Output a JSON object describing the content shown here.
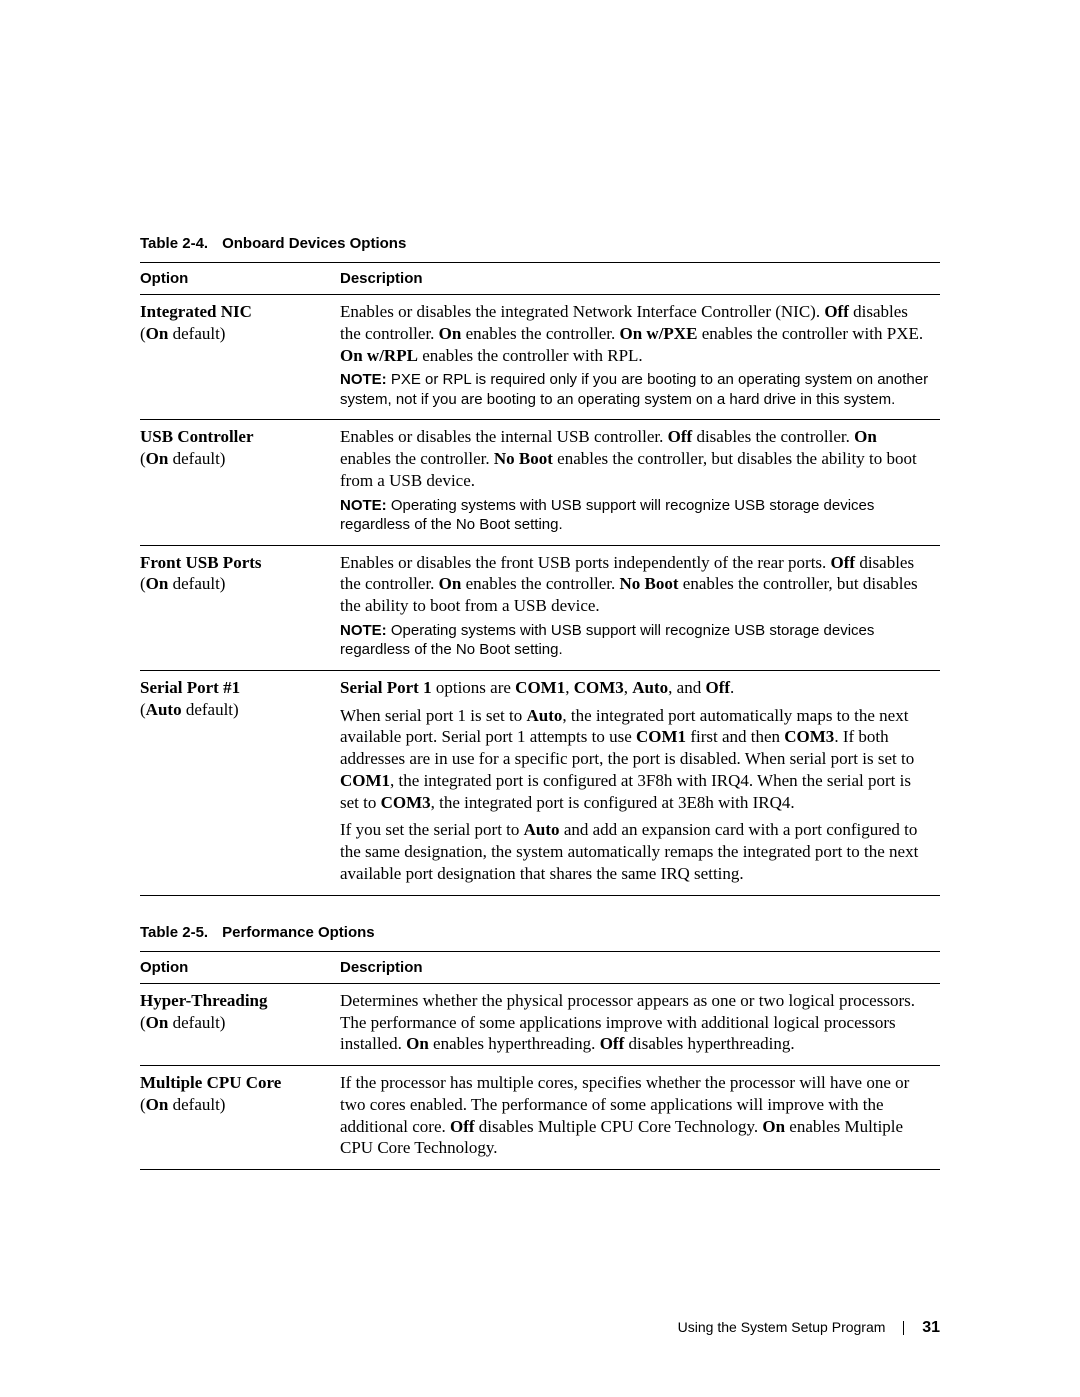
{
  "table1": {
    "caption_num": "Table 2-4.",
    "caption_title": "Onboard Devices Options",
    "header_option": "Option",
    "header_description": "Description",
    "rows": {
      "r1": {
        "name": "Integrated NIC",
        "default_pre": "(",
        "default_bold": "On",
        "default_post": " default)",
        "desc_html": "Enables or disables the integrated Network Interface Controller (NIC). <b>Off</b> disables the controller. <b>On</b> enables the controller. <b>On w/PXE</b> enables the controller with PXE. <b>On w/RPL</b> enables the controller with RPL.",
        "note_label": "NOTE:",
        "note_text": " PXE or RPL is required only if you are booting to an operating system on another system, not if you are booting to an operating system on a hard drive in this system."
      },
      "r2": {
        "name": "USB Controller",
        "default_pre": "(",
        "default_bold": "On",
        "default_post": " default)",
        "desc_html": "Enables or disables the internal USB controller. <b>Off</b> disables the controller. <b>On</b> enables the controller. <b>No Boot</b> enables the controller, but disables the ability to boot from a USB device.",
        "note_label": "NOTE:",
        "note_text": " Operating systems with USB support will recognize USB storage devices regardless of the No Boot setting."
      },
      "r3": {
        "name": "Front USB Ports",
        "default_pre": "(",
        "default_bold": "On",
        "default_post": " default)",
        "desc_html": "Enables or disables the front USB ports independently of the rear ports. <b>Off</b> disables the controller. <b>On</b> enables the controller. <b>No Boot</b> enables the controller, but disables the ability to boot from a USB device.",
        "note_label": "NOTE:",
        "note_text": " Operating systems with USB support will recognize USB storage devices regardless of the No Boot setting."
      },
      "r4": {
        "name": "Serial Port #1",
        "default_pre": "(",
        "default_bold": "Auto",
        "default_post": " default)",
        "desc1_html": "<b>Serial Port 1</b> options are <b>COM1</b>, <b>COM3</b>, <b>Auto</b>, and <b>Off</b>.",
        "desc2_html": "When serial port 1 is set to <b>Auto</b>, the integrated port automatically maps to the next available port. Serial port 1 attempts to use <b>COM1</b> first and then <b>COM3</b>. If both addresses are in use for a specific port, the port is disabled. When serial port is set to <b>COM1</b>, the integrated port is configured at 3F8h with IRQ4. When the serial port is set to <b>COM3</b>, the integrated port is configured at 3E8h with IRQ4.",
        "desc3_html": "If you set the serial port to <b>Auto</b> and add an expansion card with a port configured to the same designation, the system automatically remaps the integrated port to the next available port designation that shares the same IRQ setting."
      }
    }
  },
  "table2": {
    "caption_num": "Table 2-5.",
    "caption_title": "Performance Options",
    "header_option": "Option",
    "header_description": "Description",
    "rows": {
      "r1": {
        "name": "Hyper-Threading",
        "default_pre": "(",
        "default_bold": "On",
        "default_post": " default)",
        "desc_html": "Determines whether the physical processor appears as one or two logical processors. The performance of some applications improve with additional logical processors installed. <b>On</b> enables hyperthreading. <b>Off</b> disables hyperthreading."
      },
      "r2": {
        "name": "Multiple CPU Core",
        "default_pre": "(",
        "default_bold": "On",
        "default_post": " default)",
        "desc_html": "If the processor has multiple cores, specifies whether the processor will have one or two cores enabled. The performance of some applications will improve with the additional core. <b>Off</b> disables Multiple CPU Core Technology. <b>On</b> enables Multiple CPU Core Technology."
      }
    }
  },
  "footer": {
    "text": "Using the System Setup Program",
    "page": "31"
  }
}
